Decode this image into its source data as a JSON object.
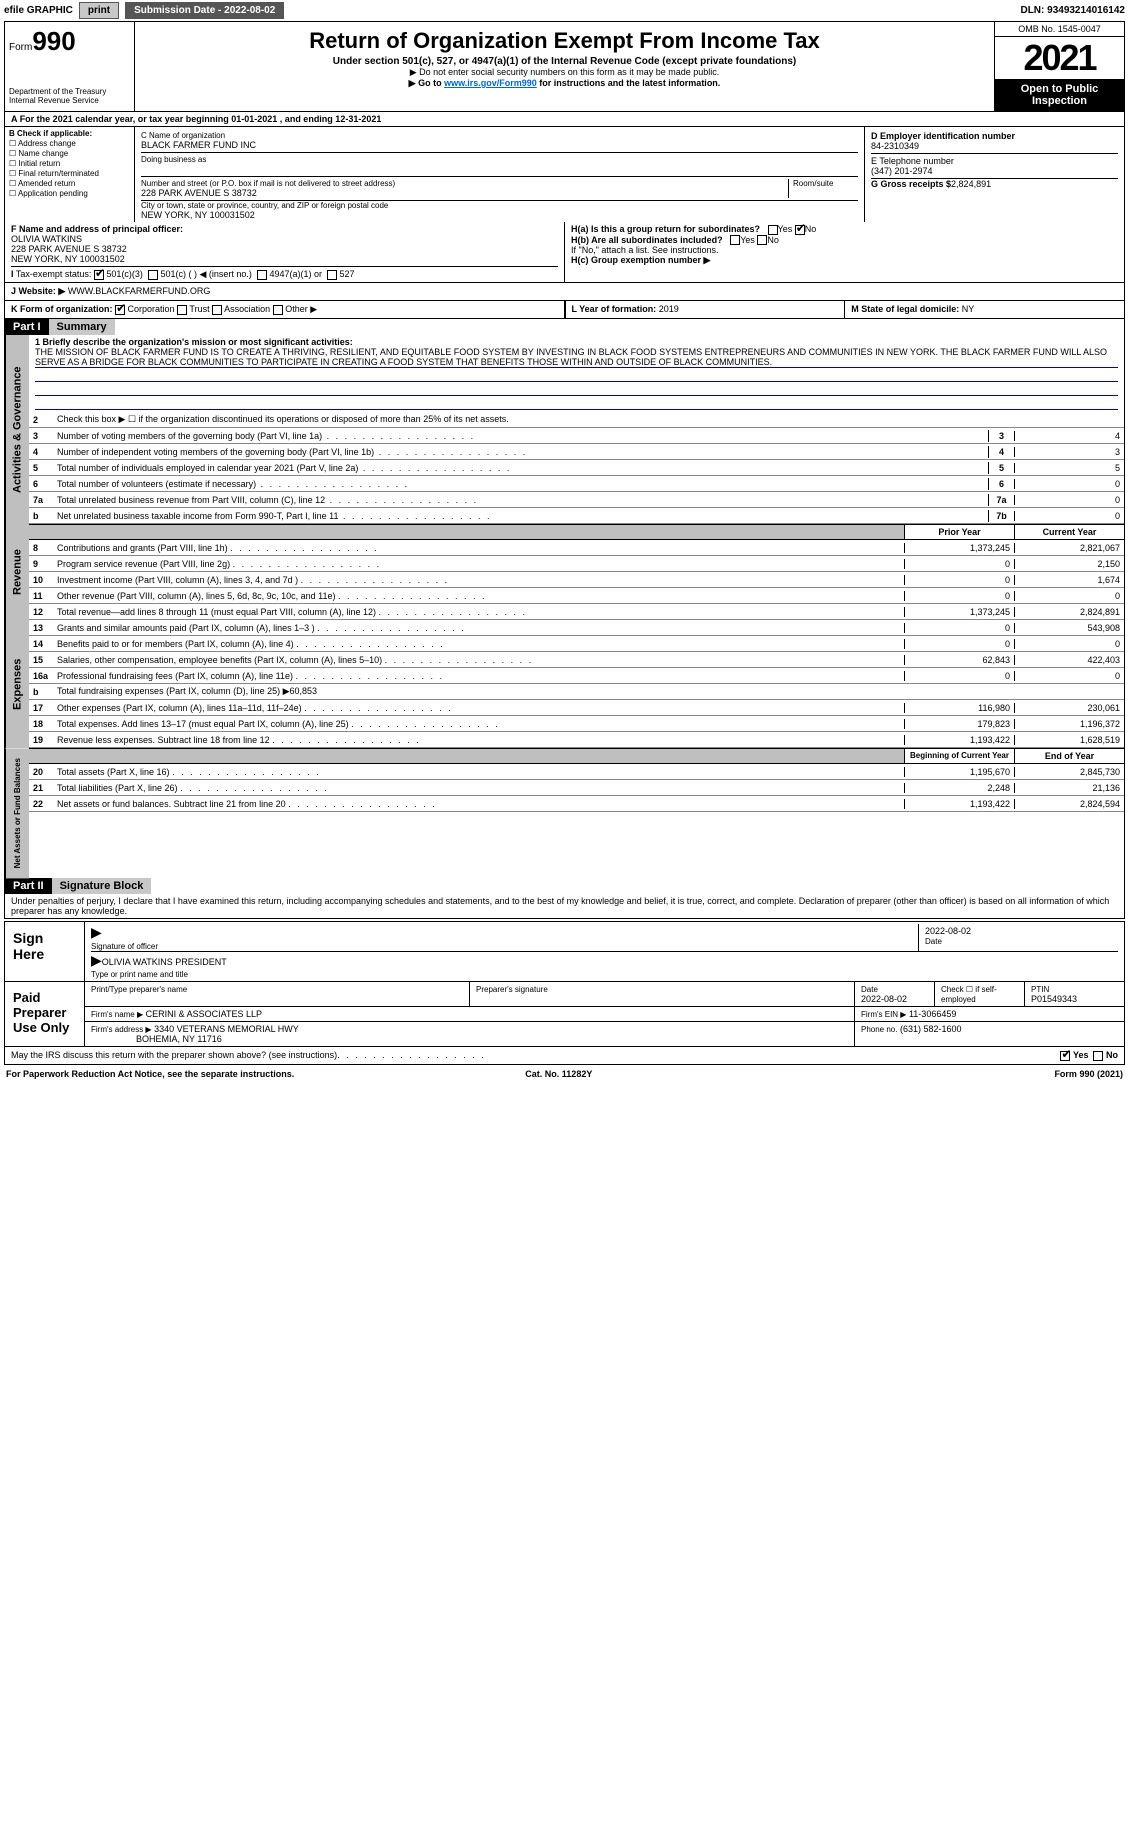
{
  "topbar": {
    "efile": "efile GRAPHIC",
    "print": "print",
    "submission": "Submission Date - 2022-08-02",
    "dln": "DLN: 93493214016142"
  },
  "header": {
    "form_prefix": "Form",
    "form_number": "990",
    "dept": "Department of the Treasury",
    "irs": "Internal Revenue Service",
    "title": "Return of Organization Exempt From Income Tax",
    "subtitle": "Under section 501(c), 527, or 4947(a)(1) of the Internal Revenue Code (except private foundations)",
    "note1": "▶ Do not enter social security numbers on this form as it may be made public.",
    "note2_prefix": "▶ Go to ",
    "note2_link": "www.irs.gov/Form990",
    "note2_suffix": " for instructions and the latest information.",
    "omb": "OMB No. 1545-0047",
    "year": "2021",
    "inspect": "Open to Public Inspection"
  },
  "period": "For the 2021 calendar year, or tax year beginning 01-01-2021    , and ending 12-31-2021",
  "boxA": "A",
  "boxB": {
    "label": "B Check if applicable:",
    "opts": [
      "Address change",
      "Name change",
      "Initial return",
      "Final return/terminated",
      "Amended return",
      "Application pending"
    ]
  },
  "boxC": {
    "name_lbl": "C Name of organization",
    "name": "BLACK FARMER FUND INC",
    "dba_lbl": "Doing business as",
    "addr_lbl": "Number and street (or P.O. box if mail is not delivered to street address)",
    "room_lbl": "Room/suite",
    "addr": "228 PARK AVENUE S 38732",
    "city_lbl": "City or town, state or province, country, and ZIP or foreign postal code",
    "city": "NEW YORK, NY  100031502"
  },
  "boxD": {
    "lbl": "D Employer identification number",
    "val": "84-2310349"
  },
  "boxE": {
    "lbl": "E Telephone number",
    "val": "(347) 201-2974"
  },
  "boxG": {
    "lbl": "G Gross receipts $",
    "val": "2,824,891"
  },
  "boxF": {
    "lbl": "F  Name and address of principal officer:",
    "name": "OLIVIA WATKINS",
    "addr1": "228 PARK AVENUE S 38732",
    "addr2": "NEW YORK, NY  100031502"
  },
  "boxH": {
    "a": "H(a)  Is this a group return for subordinates?",
    "b": "H(b)  Are all subordinates included?",
    "note": "If \"No,\" attach a list. See instructions.",
    "c": "H(c)  Group exemption number ▶",
    "yes": "Yes",
    "no": "No"
  },
  "boxI": {
    "lbl": "Tax-exempt status:",
    "o1": "501(c)(3)",
    "o2": "501(c) (   ) ◀ (insert no.)",
    "o3": "4947(a)(1) or",
    "o4": "527"
  },
  "boxJ": {
    "lbl": "Website: ▶",
    "val": "WWW.BLACKFARMERFUND.ORG"
  },
  "boxK": {
    "lbl": "K Form of organization:",
    "o1": "Corporation",
    "o2": "Trust",
    "o3": "Association",
    "o4": "Other ▶"
  },
  "boxL": {
    "lbl": "L Year of formation:",
    "val": "2019"
  },
  "boxM": {
    "lbl": "M State of legal domicile:",
    "val": "NY"
  },
  "part1": {
    "hdr": "Part I",
    "title": "Summary",
    "sidebar1": "Activities & Governance",
    "sidebar2": "Revenue",
    "sidebar3": "Expenses",
    "sidebar4": "Net Assets or Fund Balances",
    "l1_lbl": "1  Briefly describe the organization's mission or most significant activities:",
    "l1_text": "THE MISSION OF BLACK FARMER FUND IS TO CREATE A THRIVING, RESILIENT, AND EQUITABLE FOOD SYSTEM BY INVESTING IN BLACK FOOD SYSTEMS ENTREPRENEURS AND COMMUNITIES IN NEW YORK. THE BLACK FARMER FUND WILL ALSO SERVE AS A BRIDGE FOR BLACK COMMUNITIES TO PARTICIPATE IN CREATING A FOOD SYSTEM THAT BENEFITS THOSE WITHIN AND OUTSIDE OF BLACK COMMUNITIES.",
    "l2": "Check this box ▶ ☐  if the organization discontinued its operations or disposed of more than 25% of its net assets.",
    "lines": [
      {
        "n": "3",
        "d": "Number of voting members of the governing body (Part VI, line 1a)",
        "b": "3",
        "v": "4"
      },
      {
        "n": "4",
        "d": "Number of independent voting members of the governing body (Part VI, line 1b)",
        "b": "4",
        "v": "3"
      },
      {
        "n": "5",
        "d": "Total number of individuals employed in calendar year 2021 (Part V, line 2a)",
        "b": "5",
        "v": "5"
      },
      {
        "n": "6",
        "d": "Total number of volunteers (estimate if necessary)",
        "b": "6",
        "v": "0"
      },
      {
        "n": "7a",
        "d": "Total unrelated business revenue from Part VIII, column (C), line 12",
        "b": "7a",
        "v": "0"
      },
      {
        "n": "b",
        "d": "Net unrelated business taxable income from Form 990-T, Part I, line 11",
        "b": "7b",
        "v": "0"
      }
    ],
    "prior_hdr": "Prior Year",
    "curr_hdr": "Current Year",
    "rev": [
      {
        "n": "8",
        "d": "Contributions and grants (Part VIII, line 1h)",
        "p": "1,373,245",
        "c": "2,821,067"
      },
      {
        "n": "9",
        "d": "Program service revenue (Part VIII, line 2g)",
        "p": "0",
        "c": "2,150"
      },
      {
        "n": "10",
        "d": "Investment income (Part VIII, column (A), lines 3, 4, and 7d )",
        "p": "0",
        "c": "1,674"
      },
      {
        "n": "11",
        "d": "Other revenue (Part VIII, column (A), lines 5, 6d, 8c, 9c, 10c, and 11e)",
        "p": "0",
        "c": "0"
      },
      {
        "n": "12",
        "d": "Total revenue—add lines 8 through 11 (must equal Part VIII, column (A), line 12)",
        "p": "1,373,245",
        "c": "2,824,891"
      }
    ],
    "exp": [
      {
        "n": "13",
        "d": "Grants and similar amounts paid (Part IX, column (A), lines 1–3 )",
        "p": "0",
        "c": "543,908"
      },
      {
        "n": "14",
        "d": "Benefits paid to or for members (Part IX, column (A), line 4)",
        "p": "0",
        "c": "0"
      },
      {
        "n": "15",
        "d": "Salaries, other compensation, employee benefits (Part IX, column (A), lines 5–10)",
        "p": "62,843",
        "c": "422,403"
      },
      {
        "n": "16a",
        "d": "Professional fundraising fees (Part IX, column (A), line 11e)",
        "p": "0",
        "c": "0"
      },
      {
        "n": "b",
        "d": "Total fundraising expenses (Part IX, column (D), line 25) ▶60,853",
        "p": "",
        "c": "",
        "shade": true
      },
      {
        "n": "17",
        "d": "Other expenses (Part IX, column (A), lines 11a–11d, 11f–24e)",
        "p": "116,980",
        "c": "230,061"
      },
      {
        "n": "18",
        "d": "Total expenses. Add lines 13–17 (must equal Part IX, column (A), line 25)",
        "p": "179,823",
        "c": "1,196,372"
      },
      {
        "n": "19",
        "d": "Revenue less expenses. Subtract line 18 from line 12",
        "p": "1,193,422",
        "c": "1,628,519"
      }
    ],
    "beg_hdr": "Beginning of Current Year",
    "end_hdr": "End of Year",
    "net": [
      {
        "n": "20",
        "d": "Total assets (Part X, line 16)",
        "p": "1,195,670",
        "c": "2,845,730"
      },
      {
        "n": "21",
        "d": "Total liabilities (Part X, line 26)",
        "p": "2,248",
        "c": "21,136"
      },
      {
        "n": "22",
        "d": "Net assets or fund balances. Subtract line 21 from line 20",
        "p": "1,193,422",
        "c": "2,824,594"
      }
    ]
  },
  "part2": {
    "hdr": "Part II",
    "title": "Signature Block",
    "decl": "Under penalties of perjury, I declare that I have examined this return, including accompanying schedules and statements, and to the best of my knowledge and belief, it is true, correct, and complete. Declaration of preparer (other than officer) is based on all information of which preparer has any knowledge."
  },
  "sign": {
    "label": "Sign Here",
    "sig_lbl": "Signature of officer",
    "date_lbl": "Date",
    "date": "2022-08-02",
    "name": "OLIVIA WATKINS  PRESIDENT",
    "name_lbl": "Type or print name and title"
  },
  "paid": {
    "label": "Paid Preparer Use Only",
    "col1": "Print/Type preparer's name",
    "col2": "Preparer's signature",
    "col3": "Date",
    "col3v": "2022-08-02",
    "col4": "Check ☐ if self-employed",
    "col5": "PTIN",
    "col5v": "P01549343",
    "firm_lbl": "Firm's name    ▶",
    "firm": "CERINI & ASSOCIATES LLP",
    "ein_lbl": "Firm's EIN ▶",
    "ein": "11-3066459",
    "addr_lbl": "Firm's address ▶",
    "addr": "3340 VETERANS MEMORIAL HWY",
    "addr2": "BOHEMIA, NY  11716",
    "phone_lbl": "Phone no.",
    "phone": "(631) 582-1600"
  },
  "discuss": "May the IRS discuss this return with the preparer shown above? (see instructions)",
  "footer": {
    "left": "For Paperwork Reduction Act Notice, see the separate instructions.",
    "mid": "Cat. No. 11282Y",
    "right": "Form 990 (2021)"
  }
}
